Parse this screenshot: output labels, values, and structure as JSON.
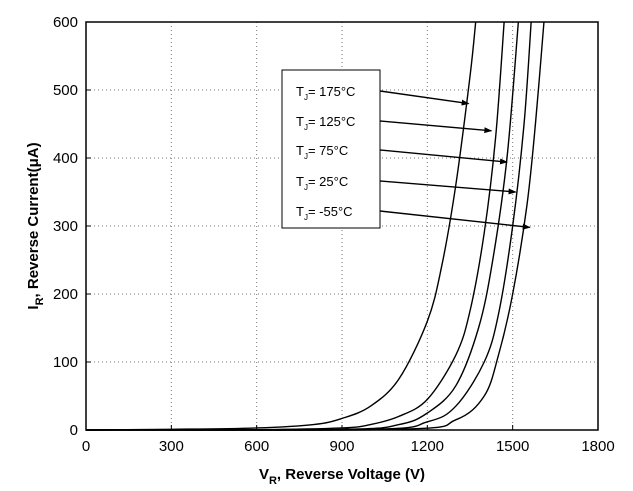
{
  "chart_data": {
    "type": "line",
    "title": "",
    "xlabel_main": "V",
    "xlabel_sub": "R",
    "xlabel_rest": ", Reverse Voltage (V)",
    "ylabel_main": "I",
    "ylabel_sub": "R",
    "ylabel_rest": ", Reverse Current(μA)",
    "xlim": [
      0,
      1800
    ],
    "ylim": [
      0,
      600
    ],
    "x_ticks": [
      0,
      300,
      600,
      900,
      1200,
      1500,
      1800
    ],
    "y_ticks": [
      0,
      100,
      200,
      300,
      400,
      500,
      600
    ],
    "grid": "dotted",
    "legend_placement": "top-center",
    "series": [
      {
        "name": "T_J= 175°C",
        "label_main": "T",
        "label_sub": "J",
        "label_rest": "= 175°C",
        "points": [
          [
            0,
            0
          ],
          [
            300,
            1
          ],
          [
            600,
            3
          ],
          [
            800,
            8
          ],
          [
            900,
            17
          ],
          [
            1000,
            35
          ],
          [
            1100,
            75
          ],
          [
            1200,
            160
          ],
          [
            1250,
            240
          ],
          [
            1300,
            360
          ],
          [
            1350,
            520
          ],
          [
            1370,
            600
          ]
        ],
        "arrow_to": [
          1345,
          480
        ]
      },
      {
        "name": "T_J= 125°C",
        "label_main": "T",
        "label_sub": "J",
        "label_rest": "= 125°C",
        "points": [
          [
            0,
            0
          ],
          [
            600,
            0.5
          ],
          [
            900,
            3
          ],
          [
            1000,
            8
          ],
          [
            1100,
            20
          ],
          [
            1200,
            45
          ],
          [
            1300,
            110
          ],
          [
            1350,
            175
          ],
          [
            1400,
            290
          ],
          [
            1440,
            430
          ],
          [
            1470,
            600
          ]
        ],
        "arrow_to": [
          1425,
          440
        ]
      },
      {
        "name": "T_J= 75°C",
        "label_main": "T",
        "label_sub": "J",
        "label_rest": "= 75°C",
        "points": [
          [
            0,
            0
          ],
          [
            900,
            1
          ],
          [
            1100,
            8
          ],
          [
            1200,
            25
          ],
          [
            1300,
            65
          ],
          [
            1380,
            150
          ],
          [
            1430,
            250
          ],
          [
            1480,
            400
          ],
          [
            1520,
            600
          ]
        ],
        "arrow_to": [
          1480,
          394
        ]
      },
      {
        "name": "T_J= 25°C",
        "label_main": "T",
        "label_sub": "J",
        "label_rest": "= 25°C",
        "points": [
          [
            0,
            0
          ],
          [
            1000,
            1
          ],
          [
            1200,
            12
          ],
          [
            1300,
            35
          ],
          [
            1400,
            100
          ],
          [
            1450,
            170
          ],
          [
            1500,
            300
          ],
          [
            1540,
            450
          ],
          [
            1565,
            600
          ]
        ],
        "arrow_to": [
          1510,
          350
        ]
      },
      {
        "name": "T_J= -55°C",
        "label_main": "T",
        "label_sub": "J",
        "label_rest": "= -55°C",
        "points": [
          [
            0,
            0
          ],
          [
            1100,
            1
          ],
          [
            1300,
            15
          ],
          [
            1400,
            50
          ],
          [
            1450,
            110
          ],
          [
            1500,
            200
          ],
          [
            1550,
            330
          ],
          [
            1580,
            450
          ],
          [
            1610,
            600
          ]
        ],
        "arrow_to": [
          1560,
          298
        ]
      }
    ]
  }
}
